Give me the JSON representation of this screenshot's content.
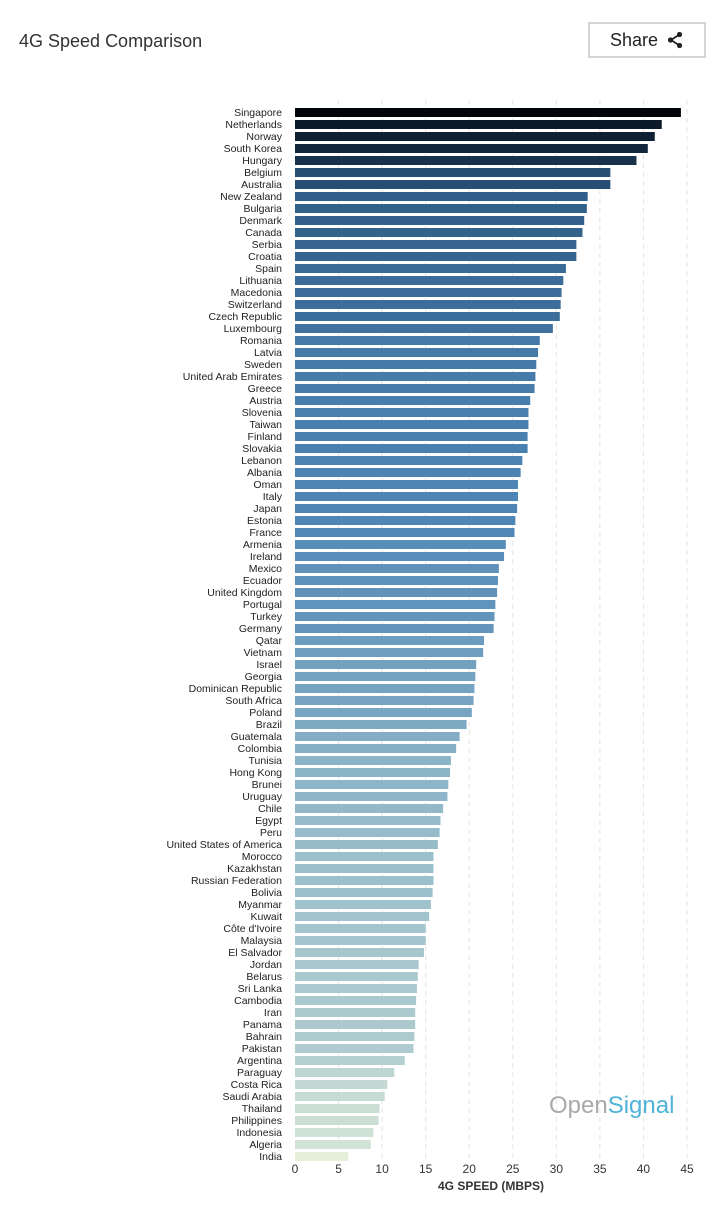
{
  "header": {
    "title": "4G Speed Comparison",
    "share_label": "Share"
  },
  "watermark": {
    "part1": "Open",
    "part2": "Signal"
  },
  "chart_data": {
    "type": "bar",
    "orientation": "horizontal",
    "title": "4G Speed Comparison",
    "xlabel": "4G SPEED (MBPS)",
    "xlim": [
      0,
      45
    ],
    "xticks": [
      0,
      5,
      10,
      15,
      20,
      25,
      30,
      35,
      40,
      45
    ],
    "grid": "vertical dashed",
    "color_scale": [
      "#e6efd9",
      "#9fc2cc",
      "#4f87b7",
      "#2d5a84",
      "#02050c"
    ],
    "categories": [
      "Singapore",
      "Netherlands",
      "Norway",
      "South Korea",
      "Hungary",
      "Belgium",
      "Australia",
      "New Zealand",
      "Bulgaria",
      "Denmark",
      "Canada",
      "Serbia",
      "Croatia",
      "Spain",
      "Lithuania",
      "Macedonia",
      "Switzerland",
      "Czech Republic",
      "Luxembourg",
      "Romania",
      "Latvia",
      "Sweden",
      "United Arab Emirates",
      "Greece",
      "Austria",
      "Slovenia",
      "Taiwan",
      "Finland",
      "Slovakia",
      "Lebanon",
      "Albania",
      "Oman",
      "Italy",
      "Japan",
      "Estonia",
      "France",
      "Armenia",
      "Ireland",
      "Mexico",
      "Ecuador",
      "United Kingdom",
      "Portugal",
      "Turkey",
      "Germany",
      "Qatar",
      "Vietnam",
      "Israel",
      "Georgia",
      "Dominican Republic",
      "South Africa",
      "Poland",
      "Brazil",
      "Guatemala",
      "Colombia",
      "Tunisia",
      "Hong Kong",
      "Brunei",
      "Uruguay",
      "Chile",
      "Egypt",
      "Peru",
      "United States of America",
      "Morocco",
      "Kazakhstan",
      "Russian Federation",
      "Bolivia",
      "Myanmar",
      "Kuwait",
      "Côte d'Ivoire",
      "Malaysia",
      "El Salvador",
      "Jordan",
      "Belarus",
      "Sri Lanka",
      "Cambodia",
      "Iran",
      "Panama",
      "Bahrain",
      "Pakistan",
      "Argentina",
      "Paraguay",
      "Costa Rica",
      "Saudi Arabia",
      "Thailand",
      "Philippines",
      "Indonesia",
      "Algeria",
      "India"
    ],
    "values": [
      44.3,
      42.1,
      41.3,
      40.5,
      39.2,
      36.2,
      36.2,
      33.6,
      33.5,
      33.2,
      33.0,
      32.3,
      32.3,
      31.1,
      30.8,
      30.6,
      30.5,
      30.4,
      29.6,
      28.1,
      27.9,
      27.7,
      27.6,
      27.5,
      27.0,
      26.8,
      26.8,
      26.7,
      26.7,
      26.1,
      25.9,
      25.6,
      25.6,
      25.5,
      25.3,
      25.2,
      24.2,
      24.0,
      23.4,
      23.3,
      23.2,
      23.0,
      22.9,
      22.8,
      21.7,
      21.6,
      20.8,
      20.7,
      20.6,
      20.5,
      20.3,
      19.7,
      18.9,
      18.5,
      17.9,
      17.8,
      17.6,
      17.5,
      17.0,
      16.7,
      16.6,
      16.4,
      15.9,
      15.9,
      15.9,
      15.8,
      15.6,
      15.4,
      15.0,
      15.0,
      14.8,
      14.2,
      14.1,
      14.0,
      13.9,
      13.8,
      13.8,
      13.7,
      13.6,
      12.6,
      11.4,
      10.6,
      10.3,
      9.7,
      9.6,
      9.0,
      8.7,
      6.1
    ]
  }
}
